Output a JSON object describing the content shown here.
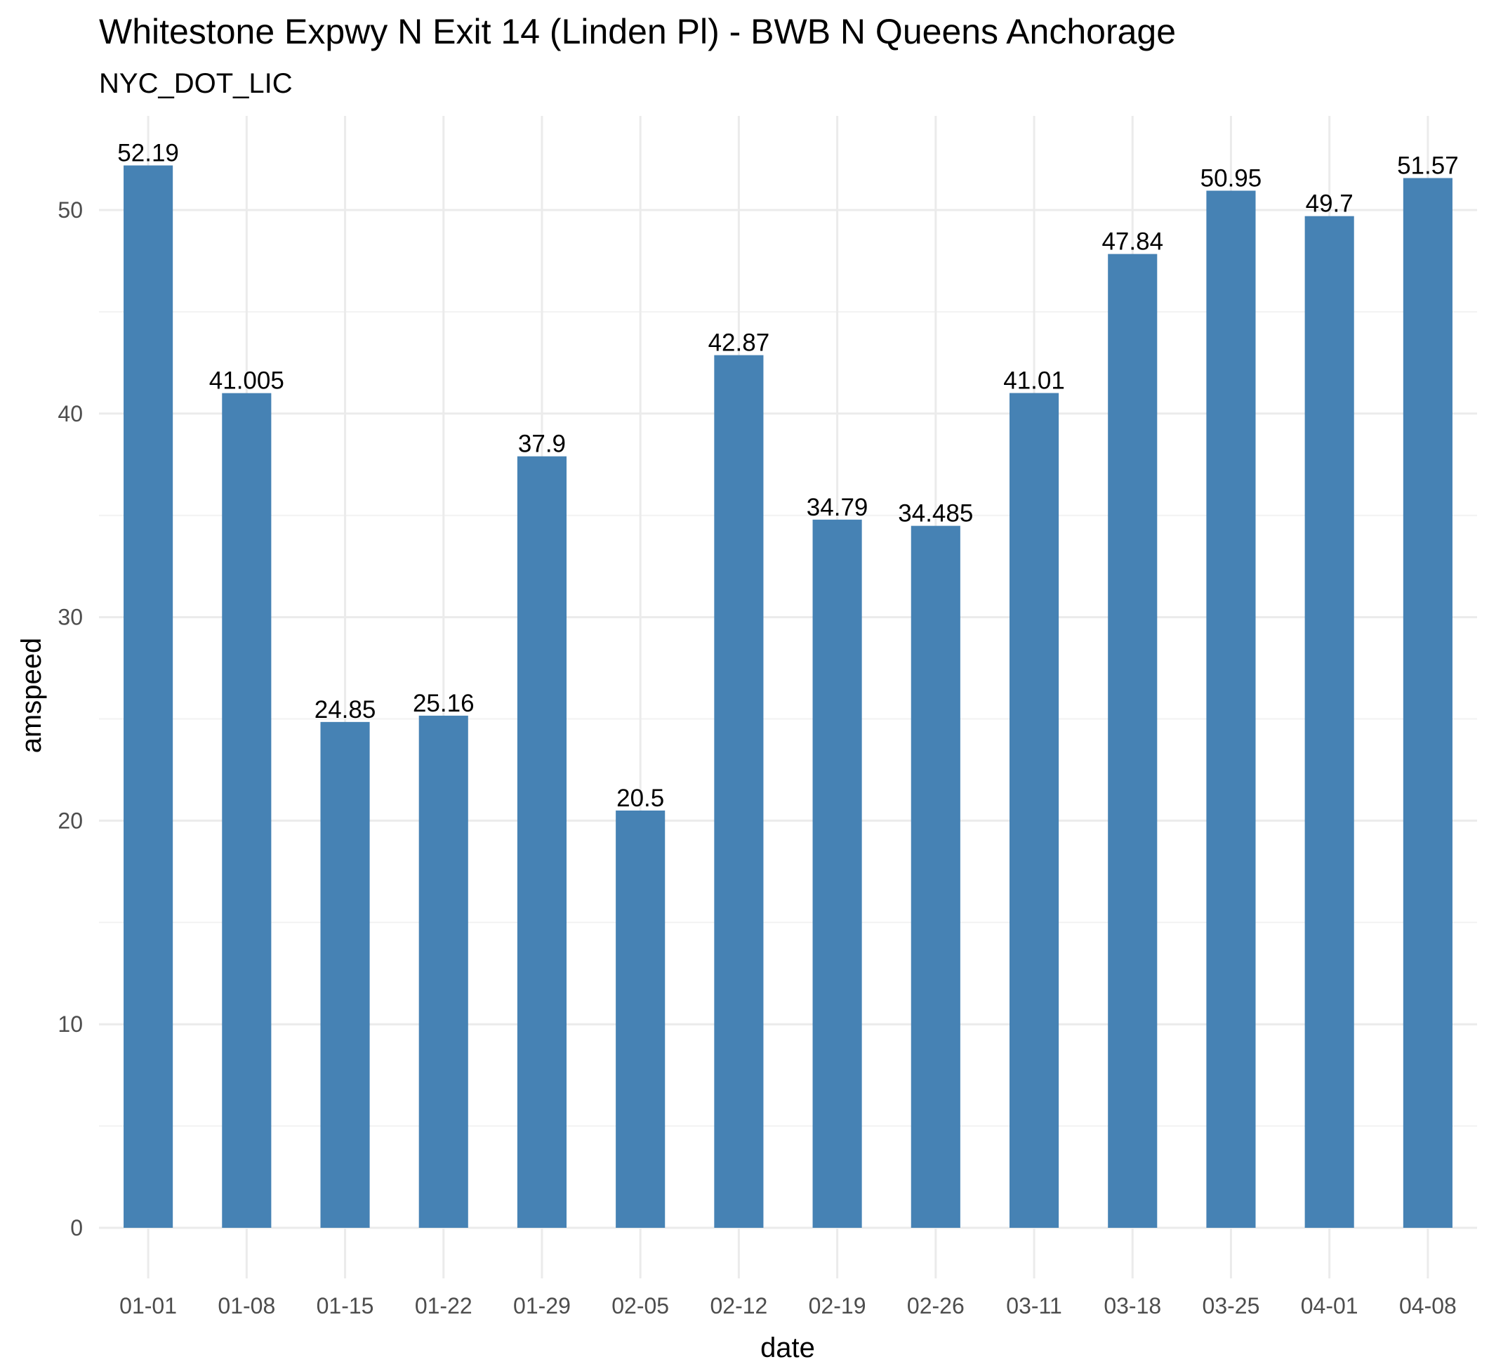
{
  "chart_data": {
    "type": "bar",
    "title": "Whitestone Expwy N Exit 14 (Linden Pl) - BWB N Queens Anchorage",
    "subtitle": "NYC_DOT_LIC",
    "xlabel": "date",
    "ylabel": "amspeed",
    "categories": [
      "01-01",
      "01-08",
      "01-15",
      "01-22",
      "01-29",
      "02-05",
      "02-12",
      "02-19",
      "02-26",
      "03-11",
      "03-18",
      "03-25",
      "04-01",
      "04-08"
    ],
    "values": [
      52.19,
      41.005,
      24.85,
      25.16,
      37.9,
      20.5,
      42.87,
      34.79,
      34.485,
      41.01,
      47.84,
      50.95,
      49.7,
      51.57
    ],
    "data_labels": [
      "52.19",
      "41.005",
      "24.85",
      "25.16",
      "37.9",
      "20.5",
      "42.87",
      "34.79",
      "34.485",
      "41.01",
      "47.84",
      "50.95",
      "49.7",
      "51.57"
    ],
    "y_ticks": [
      0,
      10,
      20,
      30,
      40,
      50
    ],
    "y_tick_labels": [
      "0",
      "10",
      "20",
      "30",
      "40",
      "50"
    ],
    "ylim": [
      0,
      54.8
    ],
    "grid": true,
    "legend": "none",
    "bar_color": "#4682b4"
  }
}
